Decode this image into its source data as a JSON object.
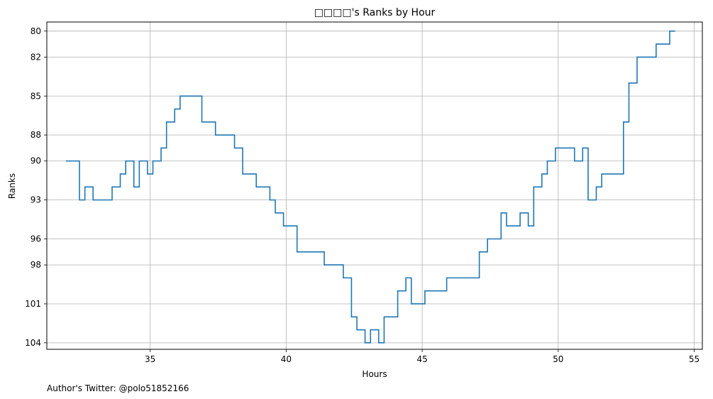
{
  "chart_data": {
    "type": "line",
    "step": true,
    "title": "□□□□'s Ranks by Hour",
    "xlabel": "Hours",
    "ylabel": "Ranks",
    "xlim": [
      31.2,
      55.3
    ],
    "ylim": [
      104.5,
      79.3
    ],
    "y_inverted": true,
    "grid": true,
    "xticks": [
      35,
      40,
      45,
      50,
      55
    ],
    "yticks": [
      80,
      82,
      85,
      88,
      90,
      93,
      96,
      98,
      101,
      104
    ],
    "line_color": "#1f77b4",
    "series": [
      {
        "points": [
          [
            31.9,
            90
          ],
          [
            32.4,
            93
          ],
          [
            32.6,
            92
          ],
          [
            32.9,
            93
          ],
          [
            33.6,
            92
          ],
          [
            33.9,
            91
          ],
          [
            34.1,
            90
          ],
          [
            34.4,
            92
          ],
          [
            34.6,
            90
          ],
          [
            34.9,
            91
          ],
          [
            35.1,
            90
          ],
          [
            35.4,
            89
          ],
          [
            35.6,
            87
          ],
          [
            35.9,
            86
          ],
          [
            36.1,
            85
          ],
          [
            36.9,
            87
          ],
          [
            37.4,
            88
          ],
          [
            38.1,
            89
          ],
          [
            38.4,
            91
          ],
          [
            38.9,
            92
          ],
          [
            39.4,
            93
          ],
          [
            39.6,
            94
          ],
          [
            39.9,
            95
          ],
          [
            40.4,
            97
          ],
          [
            41.4,
            98
          ],
          [
            42.1,
            99
          ],
          [
            42.4,
            102
          ],
          [
            42.6,
            103
          ],
          [
            42.9,
            104
          ],
          [
            43.1,
            103
          ],
          [
            43.4,
            104
          ],
          [
            43.6,
            102
          ],
          [
            44.1,
            100
          ],
          [
            44.4,
            99
          ],
          [
            44.6,
            101
          ],
          [
            45.1,
            100
          ],
          [
            45.9,
            99
          ],
          [
            47.1,
            97
          ],
          [
            47.4,
            96
          ],
          [
            47.9,
            94
          ],
          [
            48.1,
            95
          ],
          [
            48.6,
            94
          ],
          [
            48.9,
            95
          ],
          [
            49.1,
            92
          ],
          [
            49.4,
            91
          ],
          [
            49.6,
            90
          ],
          [
            49.9,
            89
          ],
          [
            50.6,
            90
          ],
          [
            50.9,
            89
          ],
          [
            51.1,
            93
          ],
          [
            51.4,
            92
          ],
          [
            51.6,
            91
          ],
          [
            52.4,
            87
          ],
          [
            52.6,
            84
          ],
          [
            52.9,
            82
          ],
          [
            53.6,
            81
          ],
          [
            54.1,
            80
          ],
          [
            54.3,
            80
          ]
        ]
      }
    ]
  },
  "footer": "Author's Twitter: @polo51852166"
}
